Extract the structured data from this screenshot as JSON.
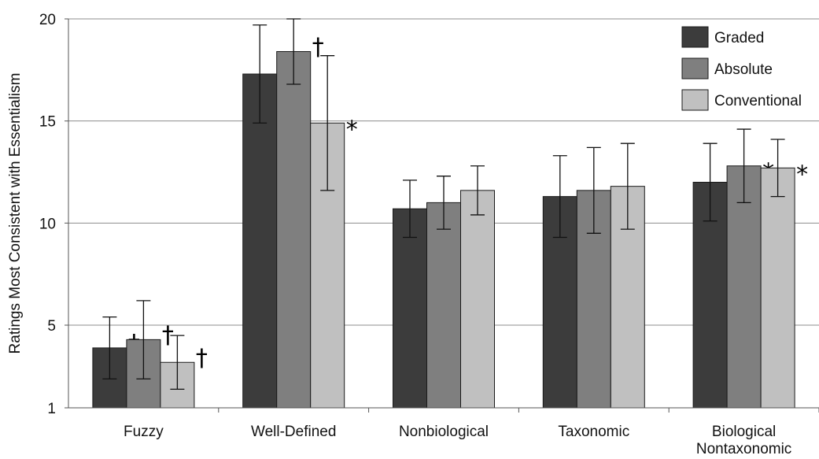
{
  "chart_data": {
    "type": "bar",
    "title": "",
    "xlabel": "",
    "ylabel": "Ratings Most Consistent with Essentialism",
    "ylim": [
      1,
      20
    ],
    "yticks": [
      1,
      5,
      10,
      15,
      20
    ],
    "grid": true,
    "legend_position": "top-right",
    "categories": [
      [
        "Fuzzy"
      ],
      [
        "Well-Defined"
      ],
      [
        "Nonbiological"
      ],
      [
        "Taxonomic"
      ],
      [
        "Biological",
        "Nontaxonomic"
      ]
    ],
    "series": [
      {
        "name": "Graded",
        "color": "#3c3c3c",
        "values": [
          3.9,
          17.3,
          10.7,
          11.3,
          12.0
        ],
        "errors": [
          1.5,
          2.4,
          1.4,
          2.0,
          1.9
        ],
        "markers": [
          "†",
          "†",
          "",
          "",
          ""
        ]
      },
      {
        "name": "Absolute",
        "color": "#7f7f7f",
        "values": [
          4.3,
          18.4,
          11.0,
          11.6,
          12.8
        ],
        "errors": [
          1.9,
          1.6,
          1.3,
          2.1,
          1.8
        ],
        "markers": [
          "†",
          "†",
          "",
          "",
          "*"
        ]
      },
      {
        "name": "Conventional",
        "color": "#c0c0c0",
        "values": [
          3.2,
          14.9,
          11.6,
          11.8,
          12.7
        ],
        "errors": [
          1.3,
          3.3,
          1.2,
          2.1,
          1.4
        ],
        "markers": [
          "†",
          "*",
          "",
          "",
          "*"
        ]
      }
    ]
  }
}
